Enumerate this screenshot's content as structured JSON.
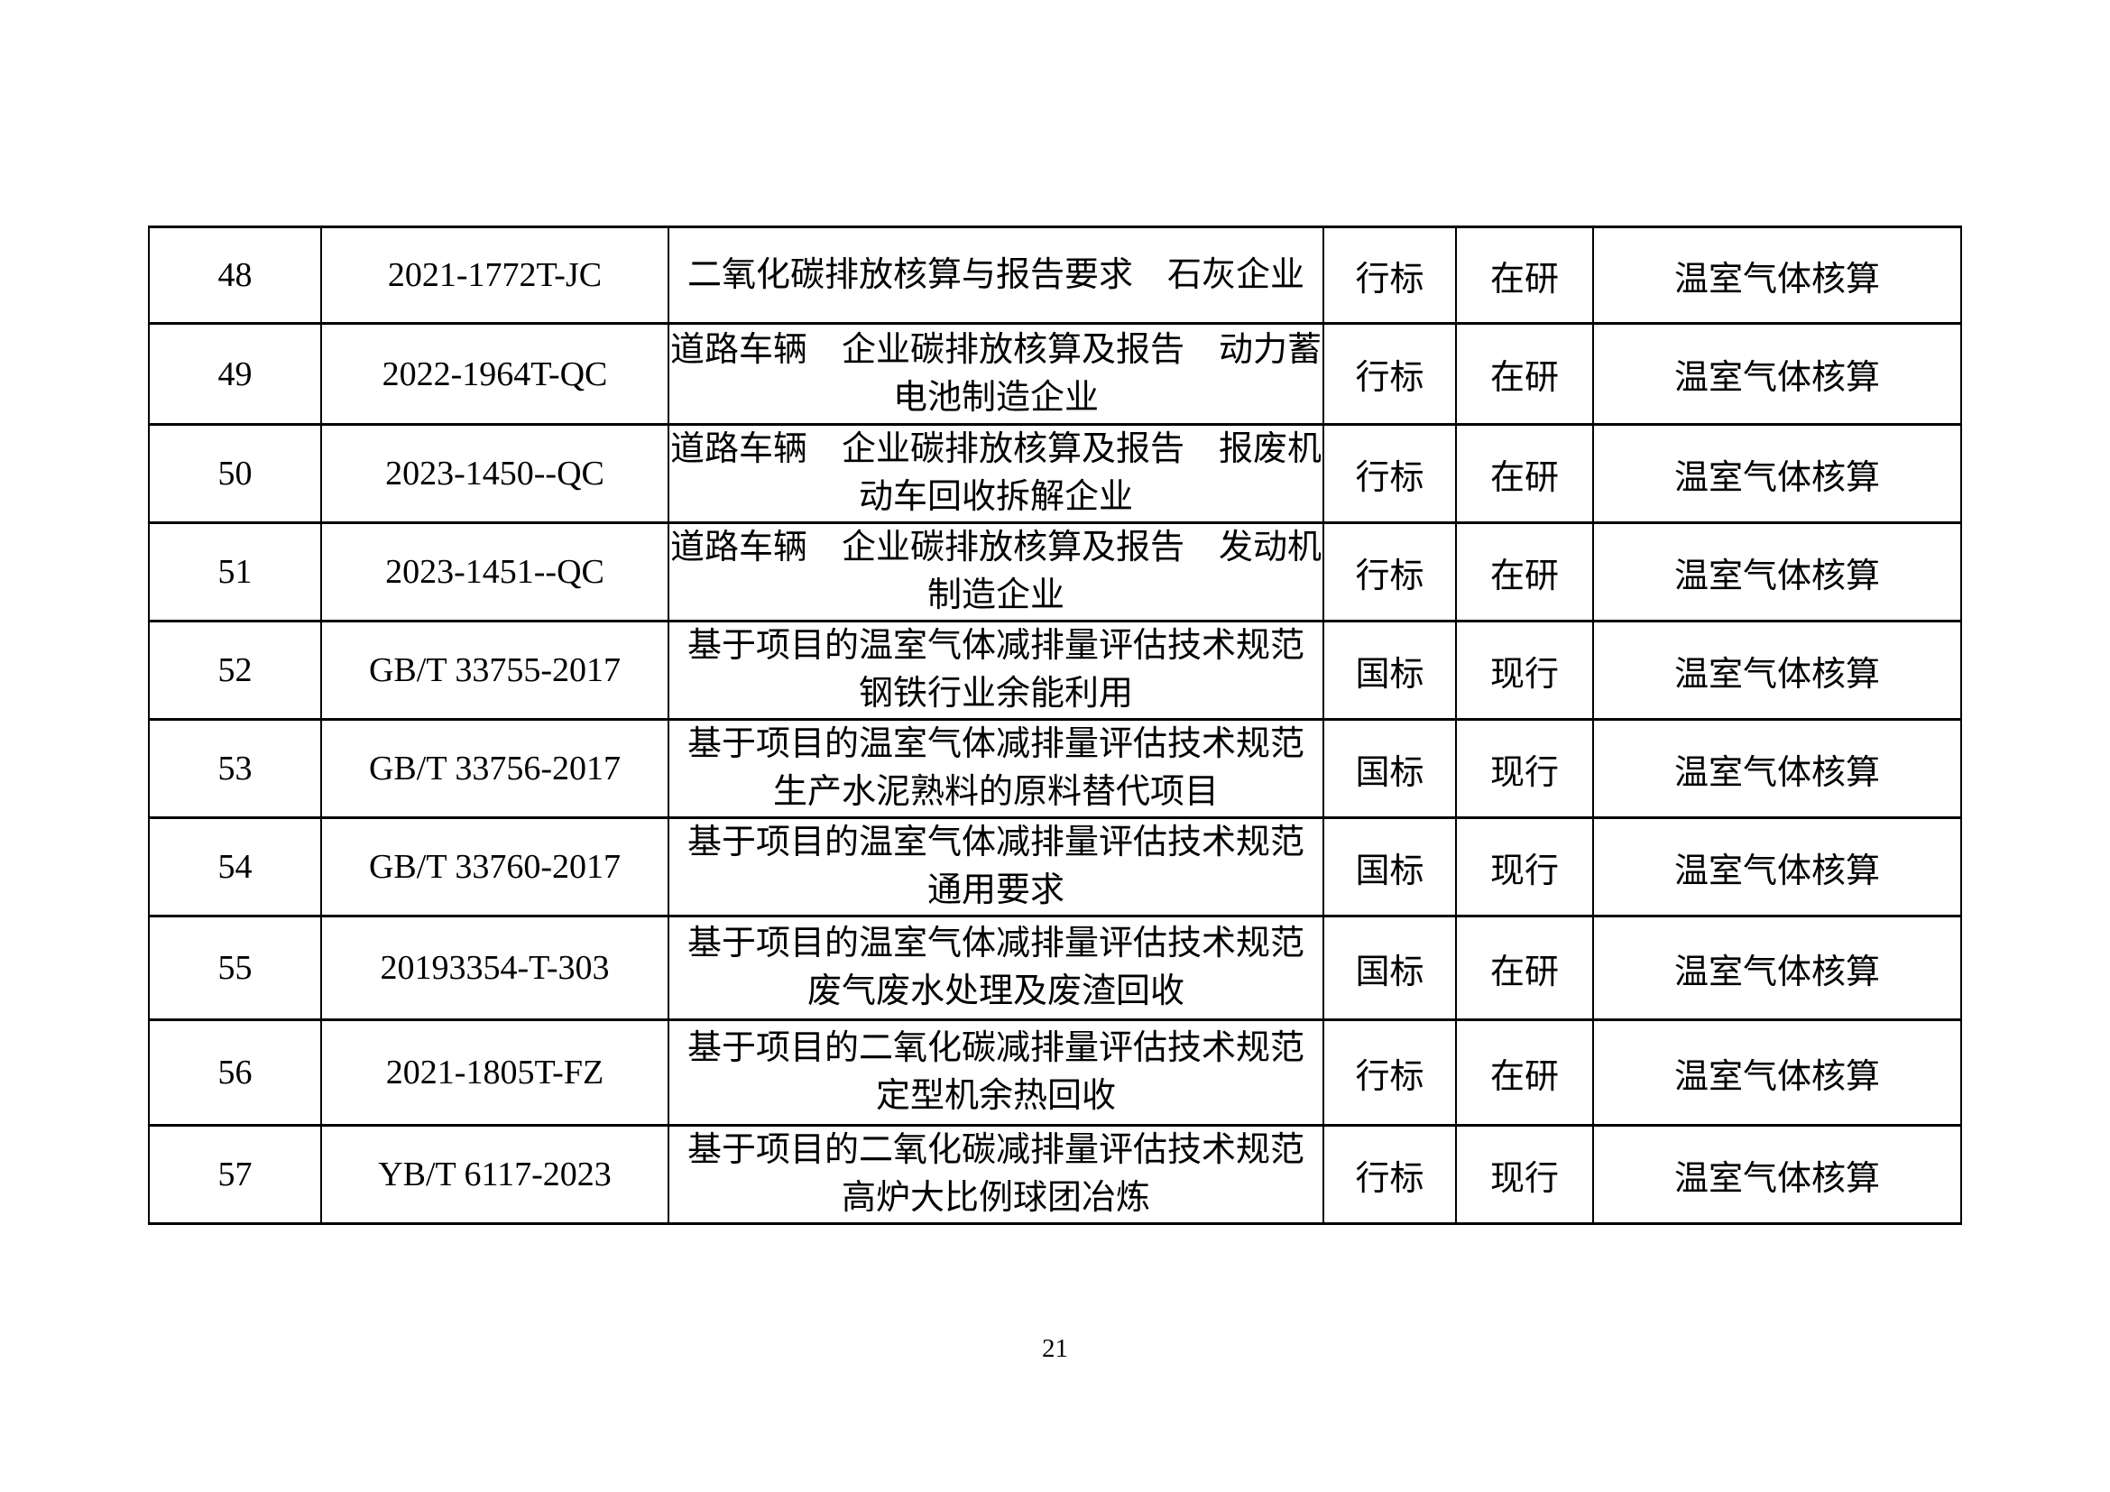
{
  "page": {
    "number": "21"
  },
  "table": {
    "rows": [
      {
        "num": "48",
        "code": "2021-1772T-JC",
        "name_lines": [
          "二氧化碳排放核算与报告要求　石灰企业"
        ],
        "type": "行标",
        "status": "在研",
        "category": "温室气体核算"
      },
      {
        "num": "49",
        "code": "2022-1964T-QC",
        "name_lines": [
          "道路车辆　企业碳排放核算及报告　动力蓄",
          "电池制造企业"
        ],
        "type": "行标",
        "status": "在研",
        "category": "温室气体核算"
      },
      {
        "num": "50",
        "code": "2023-1450--QC",
        "name_lines": [
          "道路车辆　企业碳排放核算及报告　报废机",
          "动车回收拆解企业"
        ],
        "type": "行标",
        "status": "在研",
        "category": "温室气体核算"
      },
      {
        "num": "51",
        "code": "2023-1451--QC",
        "name_lines": [
          "道路车辆　企业碳排放核算及报告　发动机",
          "制造企业"
        ],
        "type": "行标",
        "status": "在研",
        "category": "温室气体核算"
      },
      {
        "num": "52",
        "code": "GB/T 33755-2017",
        "name_lines": [
          "基于项目的温室气体减排量评估技术规范",
          "钢铁行业余能利用"
        ],
        "type": "国标",
        "status": "现行",
        "category": "温室气体核算"
      },
      {
        "num": "53",
        "code": "GB/T 33756-2017",
        "name_lines": [
          "基于项目的温室气体减排量评估技术规范",
          "生产水泥熟料的原料替代项目"
        ],
        "type": "国标",
        "status": "现行",
        "category": "温室气体核算"
      },
      {
        "num": "54",
        "code": "GB/T 33760-2017",
        "name_lines": [
          "基于项目的温室气体减排量评估技术规范",
          "通用要求"
        ],
        "type": "国标",
        "status": "现行",
        "category": "温室气体核算"
      },
      {
        "num": "55",
        "code": "20193354-T-303",
        "name_lines": [
          "基于项目的温室气体减排量评估技术规范",
          "废气废水处理及废渣回收"
        ],
        "type": "国标",
        "status": "在研",
        "category": "温室气体核算"
      },
      {
        "num": "56",
        "code": "2021-1805T-FZ",
        "name_lines": [
          "基于项目的二氧化碳减排量评估技术规范",
          "定型机余热回收"
        ],
        "type": "行标",
        "status": "在研",
        "category": "温室气体核算"
      },
      {
        "num": "57",
        "code": "YB/T 6117-2023",
        "name_lines": [
          "基于项目的二氧化碳减排量评估技术规范",
          "高炉大比例球团冶炼"
        ],
        "type": "行标",
        "status": "现行",
        "category": "温室气体核算"
      }
    ]
  }
}
